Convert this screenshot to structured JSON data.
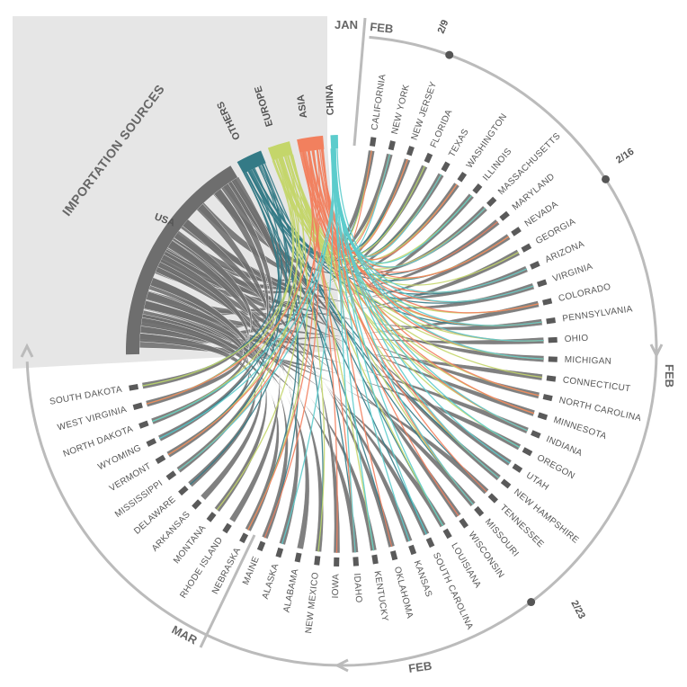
{
  "title": "IMPORTATION SOURCES",
  "colors": {
    "USA": "#6e6e6e",
    "OTHERS": "#347a86",
    "EUROPE": "#c4d66a",
    "ASIA": "#f2805e",
    "CHINA": "#5ccccc",
    "panel": "#e6e6e6",
    "timeline": "#bbbbbb",
    "text": "#555555"
  },
  "sources": [
    "USA",
    "OTHERS",
    "EUROPE",
    "ASIA",
    "CHINA"
  ],
  "states": [
    "CALIFORNIA",
    "NEW YORK",
    "NEW JERSEY",
    "FLORIDA",
    "TEXAS",
    "WASHINGTON",
    "ILLINOIS",
    "MASSACHUSETTS",
    "MARYLAND",
    "NEVADA",
    "GEORGIA",
    "ARIZONA",
    "VIRGINIA",
    "COLORADO",
    "PENNSYLVANIA",
    "OHIO",
    "MICHIGAN",
    "CONNECTICUT",
    "NORTH CAROLINA",
    "MINNESOTA",
    "INDIANA",
    "OREGON",
    "UTAH",
    "NEW HAMPSHIRE",
    "TENNESSEE",
    "MISSOURI",
    "WISCONSIN",
    "LOUISIANA",
    "SOUTH CAROLINA",
    "KANSAS",
    "OKLAHOMA",
    "KENTUCKY",
    "IDAHO",
    "IOWA",
    "NEW MEXICO",
    "ALABAMA",
    "ALASKA",
    "MAINE",
    "NEBRASKA",
    "RHODE ISLAND",
    "MONTANA",
    "ARKANSAS",
    "DELAWARE",
    "MISSISSIPPI",
    "VERMONT",
    "WYOMING",
    "NORTH DAKOTA",
    "WEST VIRGINIA",
    "SOUTH DAKOTA"
  ],
  "timeline": {
    "labels": [
      "JAN",
      "FEB",
      "2/9",
      "2/16",
      "FEB",
      "2/23",
      "FEB",
      "MAR"
    ]
  }
}
